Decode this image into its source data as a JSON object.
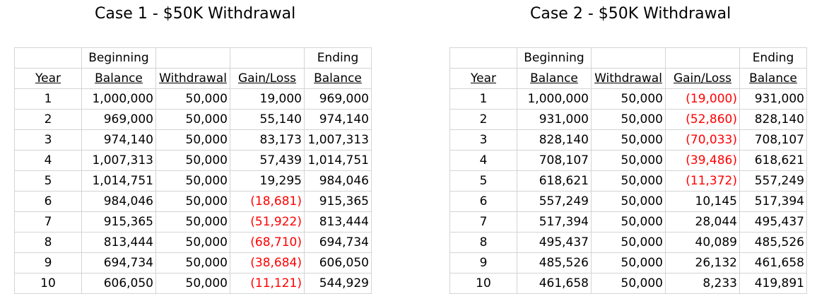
{
  "columns": {
    "year": "Year",
    "balance_top": "Beginning",
    "balance": "Balance",
    "withdrawal": "Withdrawal",
    "gain_loss": "Gain/Loss",
    "ending_top": "Ending",
    "ending": "Balance"
  },
  "cases": [
    {
      "title": "Case 1 - $50K Withdrawal",
      "rows": [
        {
          "year": "1",
          "beginning": "1,000,000",
          "withdrawal": "50,000",
          "gain_loss": "19,000",
          "ending": "969,000",
          "negative": false
        },
        {
          "year": "2",
          "beginning": "969,000",
          "withdrawal": "50,000",
          "gain_loss": "55,140",
          "ending": "974,140",
          "negative": false
        },
        {
          "year": "3",
          "beginning": "974,140",
          "withdrawal": "50,000",
          "gain_loss": "83,173",
          "ending": "1,007,313",
          "negative": false
        },
        {
          "year": "4",
          "beginning": "1,007,313",
          "withdrawal": "50,000",
          "gain_loss": "57,439",
          "ending": "1,014,751",
          "negative": false
        },
        {
          "year": "5",
          "beginning": "1,014,751",
          "withdrawal": "50,000",
          "gain_loss": "19,295",
          "ending": "984,046",
          "negative": false
        },
        {
          "year": "6",
          "beginning": "984,046",
          "withdrawal": "50,000",
          "gain_loss": "(18,681)",
          "ending": "915,365",
          "negative": true
        },
        {
          "year": "7",
          "beginning": "915,365",
          "withdrawal": "50,000",
          "gain_loss": "(51,922)",
          "ending": "813,444",
          "negative": true
        },
        {
          "year": "8",
          "beginning": "813,444",
          "withdrawal": "50,000",
          "gain_loss": "(68,710)",
          "ending": "694,734",
          "negative": true
        },
        {
          "year": "9",
          "beginning": "694,734",
          "withdrawal": "50,000",
          "gain_loss": "(38,684)",
          "ending": "606,050",
          "negative": true
        },
        {
          "year": "10",
          "beginning": "606,050",
          "withdrawal": "50,000",
          "gain_loss": "(11,121)",
          "ending": "544,929",
          "negative": true
        }
      ]
    },
    {
      "title": "Case 2 - $50K Withdrawal",
      "rows": [
        {
          "year": "1",
          "beginning": "1,000,000",
          "withdrawal": "50,000",
          "gain_loss": "(19,000)",
          "ending": "931,000",
          "negative": true
        },
        {
          "year": "2",
          "beginning": "931,000",
          "withdrawal": "50,000",
          "gain_loss": "(52,860)",
          "ending": "828,140",
          "negative": true
        },
        {
          "year": "3",
          "beginning": "828,140",
          "withdrawal": "50,000",
          "gain_loss": "(70,033)",
          "ending": "708,107",
          "negative": true
        },
        {
          "year": "4",
          "beginning": "708,107",
          "withdrawal": "50,000",
          "gain_loss": "(39,486)",
          "ending": "618,621",
          "negative": true
        },
        {
          "year": "5",
          "beginning": "618,621",
          "withdrawal": "50,000",
          "gain_loss": "(11,372)",
          "ending": "557,249",
          "negative": true
        },
        {
          "year": "6",
          "beginning": "557,249",
          "withdrawal": "50,000",
          "gain_loss": "10,145",
          "ending": "517,394",
          "negative": false
        },
        {
          "year": "7",
          "beginning": "517,394",
          "withdrawal": "50,000",
          "gain_loss": "28,044",
          "ending": "495,437",
          "negative": false
        },
        {
          "year": "8",
          "beginning": "495,437",
          "withdrawal": "50,000",
          "gain_loss": "40,089",
          "ending": "485,526",
          "negative": false
        },
        {
          "year": "9",
          "beginning": "485,526",
          "withdrawal": "50,000",
          "gain_loss": "26,132",
          "ending": "461,658",
          "negative": false
        },
        {
          "year": "10",
          "beginning": "461,658",
          "withdrawal": "50,000",
          "gain_loss": "8,233",
          "ending": "419,891",
          "negative": false
        }
      ]
    }
  ],
  "colors": {
    "negative": "#ff0000",
    "grid": "#d4d4d4"
  }
}
